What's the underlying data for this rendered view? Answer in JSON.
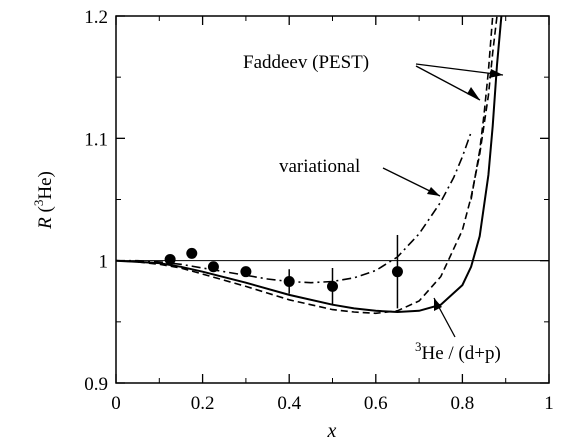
{
  "chart_data": {
    "type": "line",
    "title": "",
    "xlabel": "x",
    "ylabel": "R (³He)",
    "ylabel_parts": {
      "italic": "R",
      "open": " (",
      "sup": "3",
      "rest": "He)"
    },
    "xlim": [
      0,
      1
    ],
    "ylim": [
      0.9,
      1.2
    ],
    "xticks": [
      0,
      0.2,
      0.4,
      0.6,
      0.8,
      1
    ],
    "xtick_labels": [
      "0",
      "0.2",
      "0.4",
      "0.6",
      "0.8",
      "1"
    ],
    "yticks": [
      0.9,
      1.0,
      1.1,
      1.2
    ],
    "ytick_labels": [
      "0.9",
      "1",
      "1.1",
      "1.2"
    ],
    "grid": false,
    "reference_line": {
      "y": 1.0
    },
    "series": [
      {
        "style": "dash-dot",
        "x": [
          0,
          0.05,
          0.1,
          0.15,
          0.2,
          0.25,
          0.3,
          0.35,
          0.4,
          0.45,
          0.5,
          0.55,
          0.6,
          0.65,
          0.7,
          0.75,
          0.78,
          0.8,
          0.82
        ],
        "y": [
          1.0,
          1.0,
          0.999,
          0.997,
          0.994,
          0.991,
          0.988,
          0.985,
          0.983,
          0.982,
          0.983,
          0.986,
          0.992,
          1.003,
          1.022,
          1.048,
          1.068,
          1.085,
          1.105
        ]
      },
      {
        "style": "dashed",
        "x": [
          0,
          0.05,
          0.1,
          0.15,
          0.2,
          0.3,
          0.4,
          0.5,
          0.55,
          0.6,
          0.65,
          0.7,
          0.75,
          0.8,
          0.82,
          0.84,
          0.86,
          0.87,
          0.88
        ],
        "y": [
          1.0,
          0.999,
          0.997,
          0.994,
          0.989,
          0.979,
          0.968,
          0.96,
          0.958,
          0.957,
          0.959,
          0.967,
          0.987,
          1.025,
          1.052,
          1.087,
          1.135,
          1.17,
          1.21
        ]
      },
      {
        "style": "dashed",
        "x": [
          0.82,
          0.84,
          0.85,
          0.86,
          0.87
        ],
        "y": [
          1.05,
          1.09,
          1.12,
          1.155,
          1.205
        ]
      },
      {
        "style": "solid",
        "x": [
          0,
          0.05,
          0.1,
          0.15,
          0.2,
          0.3,
          0.4,
          0.5,
          0.55,
          0.6,
          0.65,
          0.7,
          0.75,
          0.8,
          0.82,
          0.84,
          0.86,
          0.87,
          0.88,
          0.89
        ],
        "y": [
          1.0,
          0.999,
          0.998,
          0.995,
          0.991,
          0.982,
          0.972,
          0.964,
          0.961,
          0.959,
          0.958,
          0.959,
          0.964,
          0.98,
          0.995,
          1.02,
          1.07,
          1.11,
          1.16,
          1.21
        ]
      }
    ],
    "data_points": [
      {
        "x": 0.125,
        "y": 1.001
      },
      {
        "x": 0.175,
        "y": 1.006
      },
      {
        "x": 0.225,
        "y": 0.995
      },
      {
        "x": 0.3,
        "y": 0.991
      },
      {
        "x": 0.4,
        "y": 0.983,
        "yerr": 0.01
      },
      {
        "x": 0.5,
        "y": 0.979,
        "yerr": 0.015
      },
      {
        "x": 0.65,
        "y": 0.991,
        "yerr": 0.03
      }
    ],
    "annotations": {
      "faddeev": "Faddeev (PEST)",
      "variational": "variational",
      "ratio": {
        "sup": "3",
        "text": "He / (d+p)"
      }
    }
  }
}
